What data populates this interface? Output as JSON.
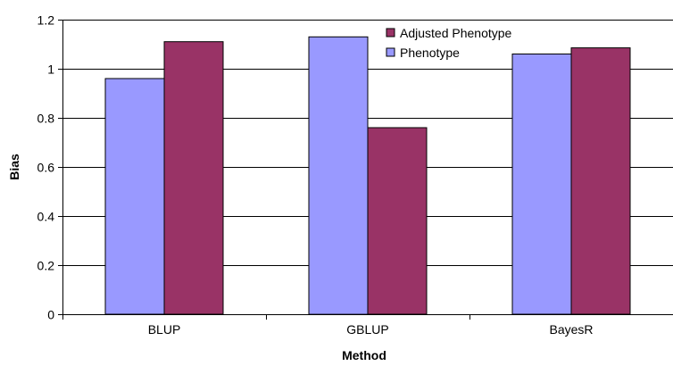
{
  "chart_data": {
    "type": "bar",
    "title": "",
    "xlabel": "Method",
    "ylabel": "Bias",
    "categories": [
      "BLUP",
      "GBLUP",
      "BayesR"
    ],
    "series": [
      {
        "name": "Phenotype",
        "color": "#9999ff",
        "values": [
          0.96,
          1.13,
          1.06
        ]
      },
      {
        "name": "Adjusted Phenotype",
        "color": "#993366",
        "values": [
          1.11,
          0.76,
          1.085
        ]
      }
    ],
    "ylim": [
      0,
      1.2
    ],
    "yticks": [
      "0",
      "0.2",
      "0.4",
      "0.6",
      "0.8",
      "1",
      "1.2"
    ],
    "grid": true,
    "legend": {
      "position": "top-center",
      "order": [
        "Adjusted Phenotype",
        "Phenotype"
      ]
    }
  }
}
